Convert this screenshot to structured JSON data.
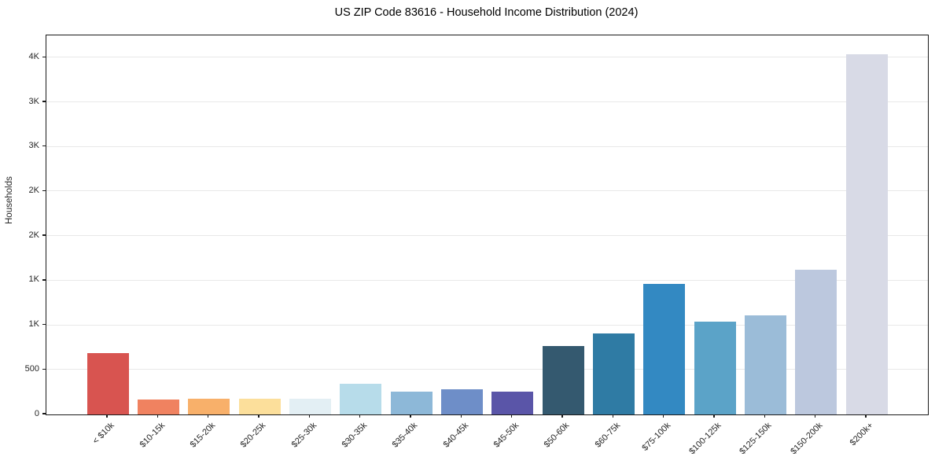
{
  "title": "US ZIP Code 83616 - Household Income Distribution (2024)",
  "chart_data": {
    "type": "bar",
    "title": "US ZIP Code 83616 - Household Income Distribution (2024)",
    "xlabel": "",
    "ylabel": "Households",
    "categories": [
      "< $10k",
      "$10-15k",
      "$15-20k",
      "$20-25k",
      "$25-30k",
      "$30-35k",
      "$35-40k",
      "$40-45k",
      "$45-50k",
      "$50-60k",
      "$60-75k",
      "$75-100k",
      "$100-125k",
      "$125-150k",
      "$150-200k",
      "$200k+"
    ],
    "values": [
      685,
      165,
      180,
      180,
      178,
      340,
      255,
      285,
      255,
      765,
      910,
      1460,
      1040,
      1110,
      1625,
      4035
    ],
    "bar_colors": [
      "#d85450",
      "#f08260",
      "#f8b06a",
      "#fcdf9b",
      "#e3eff4",
      "#b7dcea",
      "#8db8d8",
      "#6e8ec8",
      "#5a55a8",
      "#34596f",
      "#2f7ba4",
      "#3389c2",
      "#5ba3c8",
      "#9bbcd8",
      "#bcc8de",
      "#d8dae6"
    ],
    "ylim": [
      0,
      4250
    ],
    "yticks": {
      "values": [
        0,
        500,
        1000,
        1500,
        2000,
        2500,
        3000,
        3500,
        4000
      ],
      "labels": [
        "0",
        "500",
        "1K",
        "1K",
        "2K",
        "2K",
        "3K",
        "3K",
        "4K"
      ]
    },
    "grid": "horizontal",
    "legend": "none",
    "background_color": "#ffffff",
    "axis_color": "#1a1a1a",
    "gridline_color": "#e8e8e8",
    "text_color": "#262626"
  }
}
